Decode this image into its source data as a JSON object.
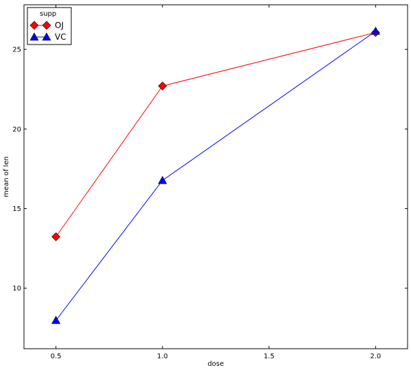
{
  "chart_data": {
    "type": "line",
    "title": "",
    "xlabel": "dose",
    "ylabel": "mean of len",
    "xlim": [
      0.35,
      2.15
    ],
    "ylim": [
      6.2,
      27.8
    ],
    "xticks": [
      0.5,
      1.0,
      1.5,
      2.0
    ],
    "xtick_labels": [
      "0.5",
      "1.0",
      "1.5",
      "2.0"
    ],
    "yticks": [
      10,
      15,
      20,
      25
    ],
    "ytick_labels": [
      "10",
      "15",
      "20",
      "25"
    ],
    "grid": false,
    "legend": {
      "title": "supp",
      "placement": "top-left"
    },
    "x": [
      0.5,
      1.0,
      2.0
    ],
    "series": [
      {
        "name": "OJ",
        "values": [
          13.23,
          22.7,
          26.06
        ],
        "color": "#ff0000",
        "marker": "diamond"
      },
      {
        "name": "VC",
        "values": [
          7.98,
          16.77,
          26.14
        ],
        "color": "#0000ff",
        "marker": "triangle"
      }
    ]
  }
}
